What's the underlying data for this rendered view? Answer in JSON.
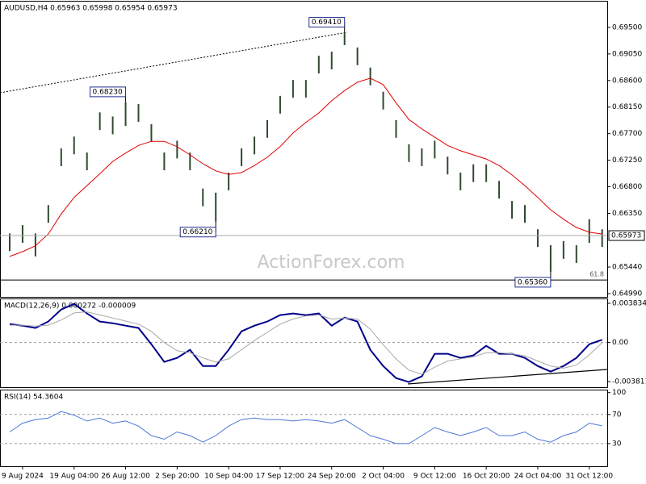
{
  "chart_data": [
    {
      "type": "ohlc",
      "title": "AUDUSD,H4  0.65963 0.65998 0.65954 0.65973",
      "color": "#2f4a2f",
      "high": [
        0.6601,
        0.6615,
        0.6601,
        0.6649,
        0.6745,
        0.6765,
        0.6738,
        0.6806,
        0.6799,
        0.6823,
        0.682,
        0.6786,
        0.6738,
        0.6758,
        0.6738,
        0.6677,
        0.667,
        0.6704,
        0.6745,
        0.6765,
        0.6793,
        0.6834,
        0.6861,
        0.6861,
        0.6902,
        0.6909,
        0.6941,
        0.6916,
        0.6882,
        0.6841,
        0.6793,
        0.6752,
        0.6745,
        0.6758,
        0.6731,
        0.6704,
        0.6718,
        0.6718,
        0.669,
        0.6656,
        0.6649,
        0.6608,
        0.6581,
        0.6588,
        0.6581,
        0.6625,
        0.6608
      ],
      "low": [
        0.6571,
        0.6585,
        0.6562,
        0.6619,
        0.6715,
        0.6735,
        0.6708,
        0.6776,
        0.6769,
        0.6783,
        0.679,
        0.6756,
        0.6708,
        0.6728,
        0.6708,
        0.6647,
        0.6621,
        0.6674,
        0.6715,
        0.6735,
        0.6763,
        0.6804,
        0.6831,
        0.6831,
        0.6872,
        0.6879,
        0.692,
        0.6886,
        0.6852,
        0.6811,
        0.6763,
        0.6722,
        0.6715,
        0.6728,
        0.6701,
        0.6674,
        0.6688,
        0.6688,
        0.666,
        0.6626,
        0.6619,
        0.6578,
        0.6536,
        0.6558,
        0.6551,
        0.6585,
        0.6578
      ],
      "ma": {
        "color": "#e00000",
        "values": [
          0.6562,
          0.657,
          0.658,
          0.66,
          0.6634,
          0.6662,
          0.6682,
          0.6702,
          0.6723,
          0.6737,
          0.675,
          0.6757,
          0.6757,
          0.6748,
          0.6734,
          0.6719,
          0.6707,
          0.6701,
          0.6704,
          0.6716,
          0.673,
          0.6748,
          0.6771,
          0.6789,
          0.6805,
          0.6826,
          0.6843,
          0.6857,
          0.6864,
          0.6853,
          0.6822,
          0.6794,
          0.6778,
          0.6764,
          0.675,
          0.6741,
          0.6734,
          0.6727,
          0.6716,
          0.67,
          0.6682,
          0.6662,
          0.6641,
          0.6625,
          0.6611,
          0.6603,
          0.66
        ]
      },
      "ylim": [
        0.64935,
        0.69923
      ],
      "yticks": [
        {
          "value": 0.695,
          "label": "0.69500"
        },
        {
          "value": 0.6905,
          "label": "0.69050"
        },
        {
          "value": 0.686,
          "label": "0.68600"
        },
        {
          "value": 0.6815,
          "label": "0.68150"
        },
        {
          "value": 0.677,
          "label": "0.67700"
        },
        {
          "value": 0.6725,
          "label": "0.67250"
        },
        {
          "value": 0.668,
          "label": "0.66800"
        },
        {
          "value": 0.6635,
          "label": "0.66350"
        },
        {
          "value": 0.6544,
          "label": "0.65440"
        },
        {
          "value": 0.6499,
          "label": "0.64990"
        }
      ],
      "current_price": {
        "value": 0.65973,
        "label": "0.65973"
      },
      "level": {
        "value": 0.6522,
        "label": "61.8"
      },
      "annotations": [
        {
          "value": 0.6823,
          "label": "0.68230"
        },
        {
          "value": 0.6621,
          "label": "0.66210"
        },
        {
          "value": 0.6941,
          "label": "0.69410"
        },
        {
          "value": 0.6536,
          "label": "0.65360"
        }
      ],
      "watermark": "ActionForex.com"
    },
    {
      "type": "line",
      "title": "MACD(12,26,9) 0.000272 -0.000009",
      "series": [
        {
          "color": "#00008b",
          "values": [
            0.00181,
            0.00165,
            0.00142,
            0.00205,
            0.00323,
            0.00378,
            0.00284,
            0.00205,
            0.00189,
            0.00165,
            0.00142,
            -0.00016,
            -0.00189,
            -0.0015,
            -0.00071,
            -0.00229,
            -0.00229,
            -0.00071,
            0.0011,
            0.00165,
            0.00205,
            0.00268,
            0.00284,
            0.00268,
            0.00284,
            0.00165,
            0.00244,
            0.00205,
            -0.00071,
            -0.00229,
            -0.00347,
            -0.00386,
            -0.00331,
            -0.0011,
            -0.0011,
            -0.0015,
            -0.00126,
            -0.00032,
            -0.0011,
            -0.0011,
            -0.0015,
            -0.00229,
            -0.00284,
            -0.00229,
            -0.0015,
            -0.00016,
            0.000272
          ]
        },
        {
          "color": "#a8a8a8",
          "values": [
            0.0017,
            0.0017,
            0.0016,
            0.0017,
            0.0022,
            0.0029,
            0.003,
            0.0027,
            0.0024,
            0.0021,
            0.0018,
            0.0011,
            0.0,
            -0.0008,
            -0.001,
            -0.0015,
            -0.0019,
            -0.0016,
            -0.0007,
            0.0002,
            0.001,
            0.0018,
            0.0023,
            0.0026,
            0.0027,
            0.0023,
            0.0024,
            0.0023,
            0.0013,
            -0.0002,
            -0.0016,
            -0.0027,
            -0.0031,
            -0.0024,
            -0.0018,
            -0.0016,
            -0.0014,
            -0.001,
            -0.001,
            -0.0011,
            -0.0013,
            -0.0018,
            -0.0023,
            -0.0025,
            -0.0022,
            -0.0012,
            -9e-06
          ]
        }
      ],
      "ylim": [
        -0.004363,
        0.004307
      ],
      "yticks": [
        0.003834,
        {
          "value": 0,
          "label": "0.00"
        },
        -0.003811
      ],
      "reference_lines": [
        0
      ]
    },
    {
      "type": "line",
      "title": "RSI(14) 54.3604",
      "series": [
        {
          "color": "#4a78d8",
          "values": [
            46,
            58,
            63,
            65,
            74,
            69,
            61,
            65,
            58,
            61,
            54,
            41,
            36,
            46,
            41,
            32,
            41,
            54,
            63,
            65,
            63,
            63,
            61,
            63,
            61,
            58,
            63,
            52,
            41,
            36,
            30,
            30,
            41,
            52,
            46,
            41,
            46,
            52,
            41,
            41,
            46,
            36,
            32,
            41,
            46,
            58,
            54.3604
          ]
        }
      ],
      "ylim": [
        0,
        103
      ],
      "yticks": [
        100,
        70,
        30
      ],
      "reference_lines": [
        70,
        30
      ],
      "categories": [
        null,
        "9 Aug 2024",
        null,
        null,
        null,
        "19 Aug 04:00",
        null,
        null,
        null,
        "26 Aug 12:00",
        null,
        null,
        null,
        "2 Sep 20:00",
        null,
        null,
        null,
        "10 Sep 04:00",
        null,
        null,
        null,
        "17 Sep 12:00",
        null,
        null,
        null,
        "24 Sep 20:00",
        null,
        null,
        null,
        "2 Oct 04:00",
        null,
        null,
        null,
        "9 Oct 12:00",
        null,
        null,
        null,
        "16 Oct 20:00",
        null,
        null,
        null,
        "24 Oct 04:00",
        null,
        null,
        null,
        "31 Oct 12:00",
        null
      ]
    }
  ]
}
